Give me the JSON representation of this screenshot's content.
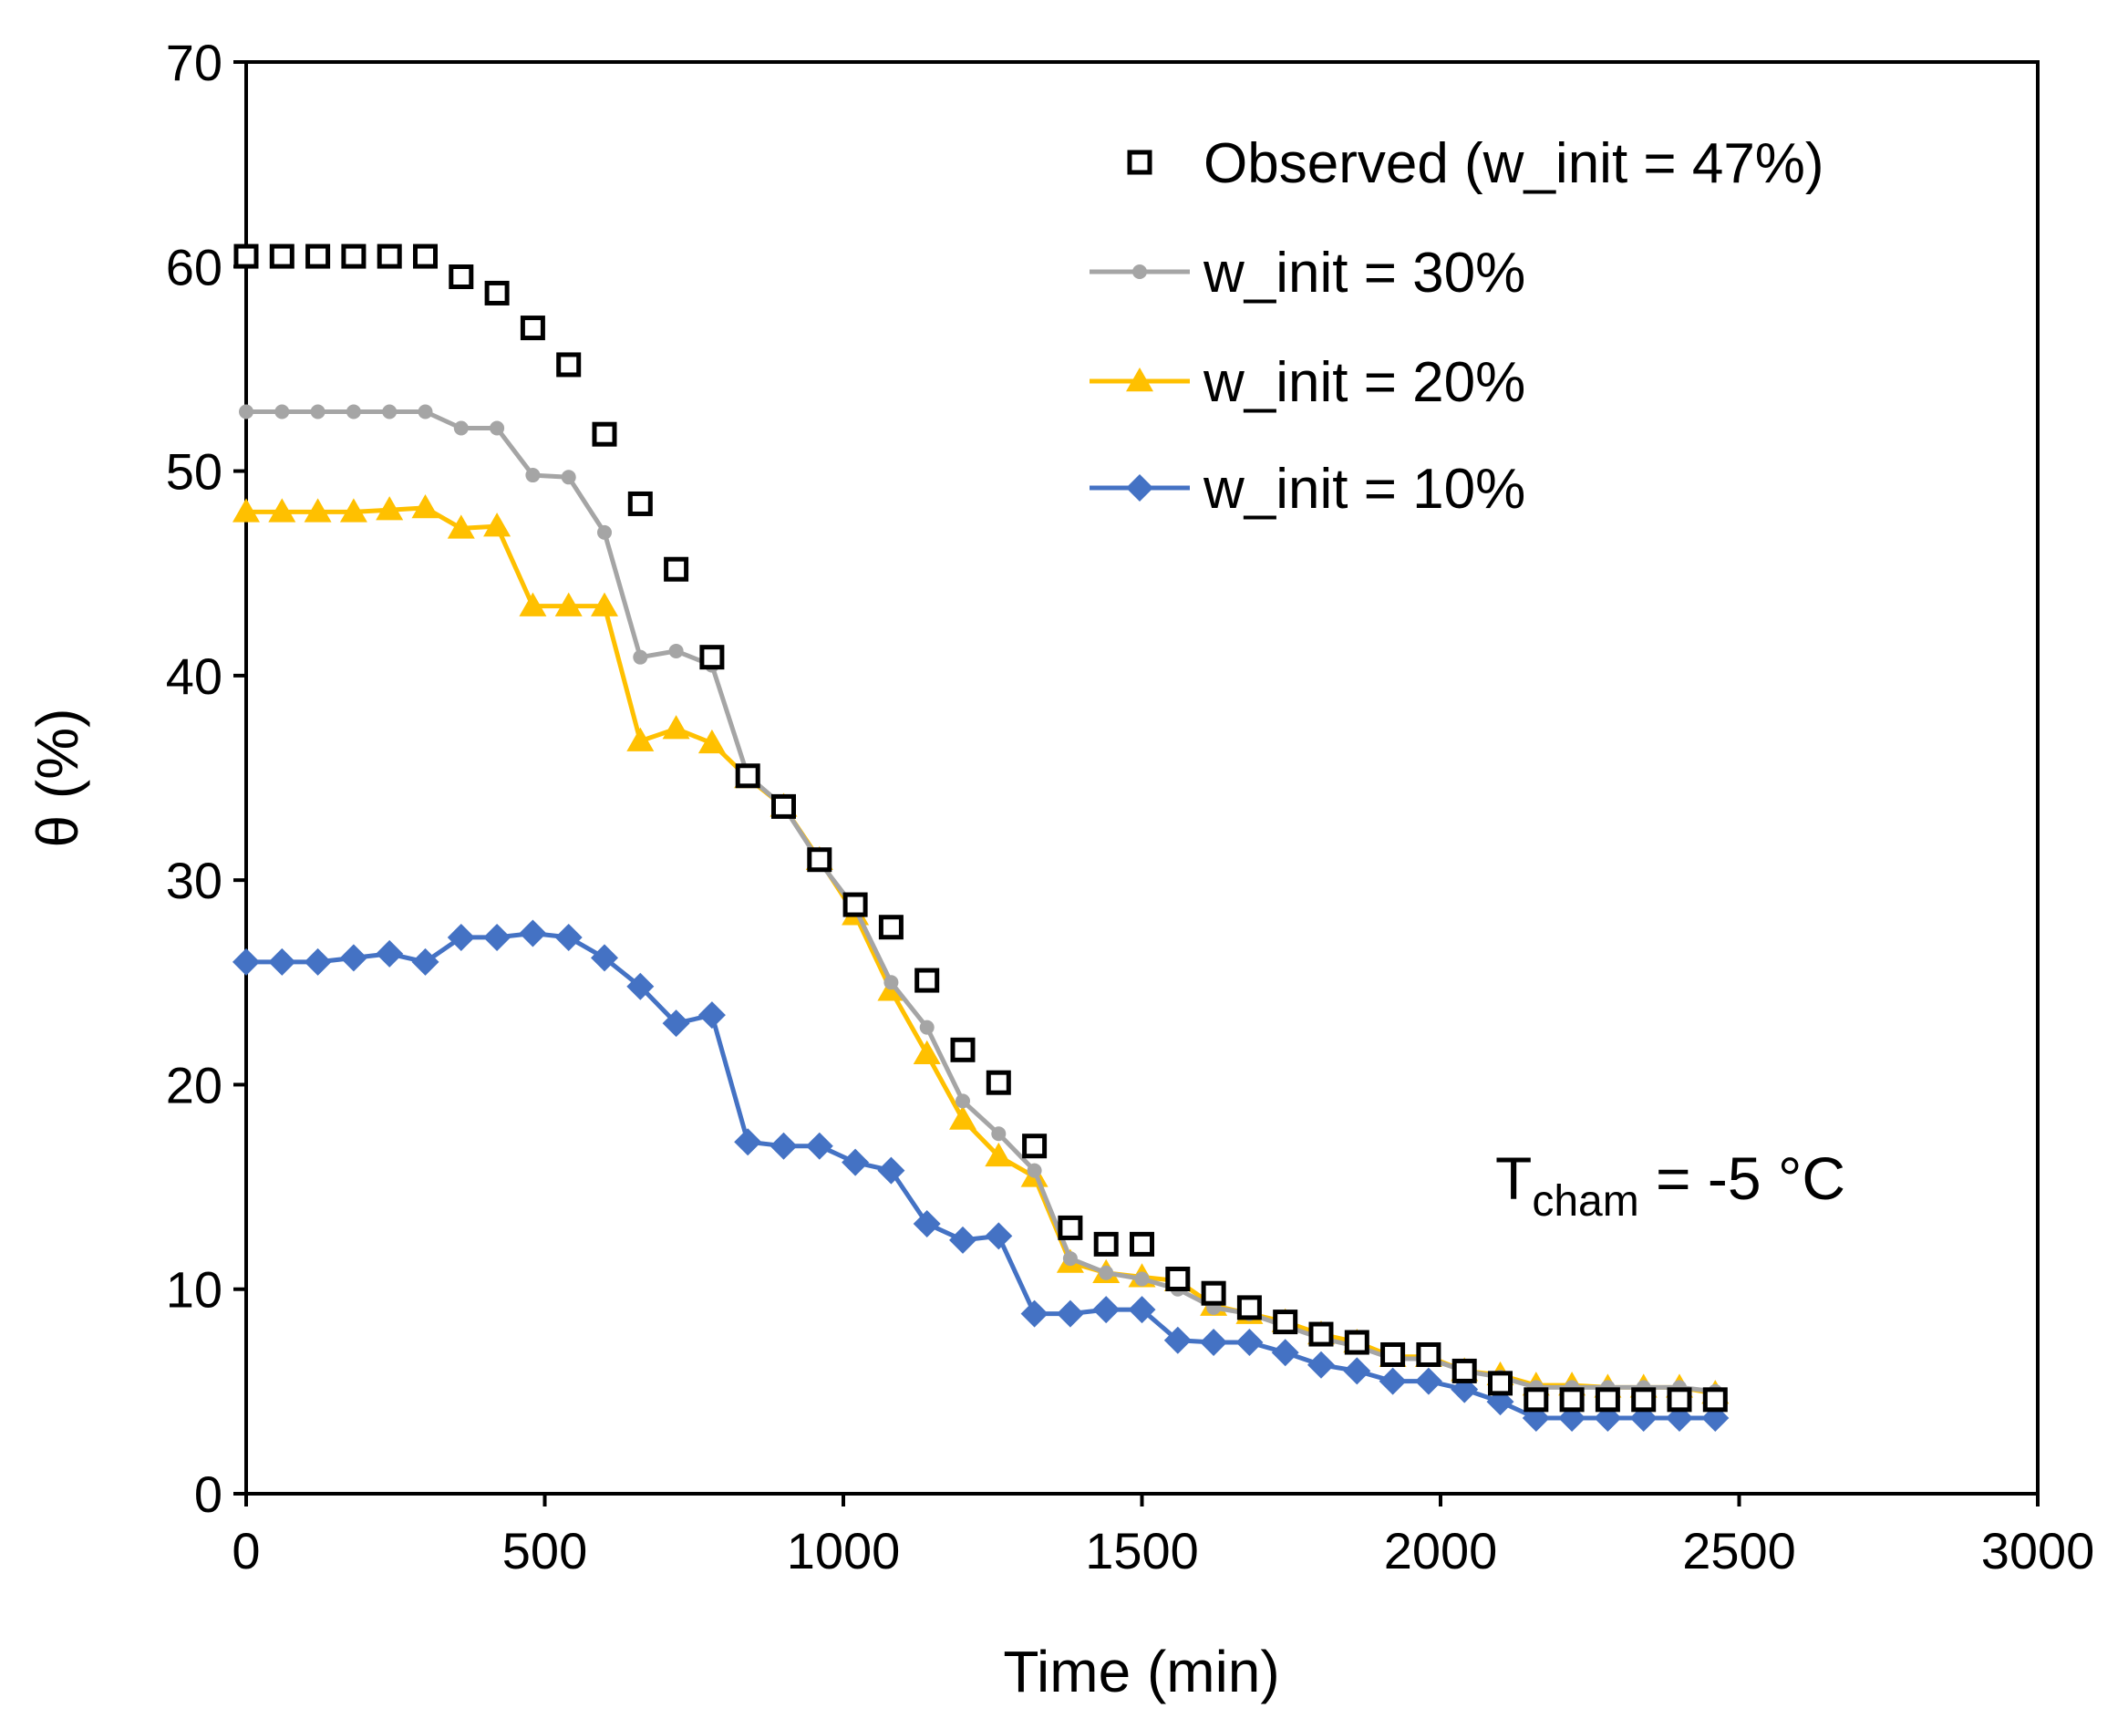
{
  "chart_data": {
    "type": "line",
    "title": "",
    "xlabel": "Time (min)",
    "ylabel": "θ (%)",
    "xlim": [
      0,
      3000
    ],
    "ylim": [
      0,
      70
    ],
    "xticks": [
      0,
      500,
      1000,
      1500,
      2000,
      2500,
      3000
    ],
    "yticks": [
      0,
      10,
      20,
      30,
      40,
      50,
      60,
      70
    ],
    "grid": false,
    "legend_position": "top-right",
    "annotation": {
      "main": "T",
      "sub": "cham",
      "rest": " = -5 °C"
    },
    "series": [
      {
        "name": "Observed (w_init = 47%)",
        "style": "markers",
        "marker": "square-open",
        "color": "#000000",
        "x": [
          0,
          60,
          120,
          180,
          240,
          300,
          360,
          420,
          480,
          540,
          600,
          660,
          720,
          780,
          840,
          900,
          960,
          1020,
          1080,
          1140,
          1200,
          1260,
          1320,
          1380,
          1440,
          1500,
          1560,
          1620,
          1680,
          1740,
          1800,
          1860,
          1920,
          1980,
          2040,
          2100,
          2160,
          2220,
          2280,
          2340,
          2400,
          2460
        ],
        "y": [
          60.5,
          60.5,
          60.5,
          60.5,
          60.5,
          60.5,
          59.5,
          58.7,
          57,
          55.2,
          51.8,
          48.4,
          45.2,
          40.9,
          35.1,
          33.6,
          31,
          28.8,
          27.7,
          25.1,
          21.7,
          20.1,
          17,
          13,
          12.2,
          12.2,
          10.5,
          9.8,
          9.1,
          8.4,
          7.8,
          7.4,
          6.8,
          6.8,
          6,
          5.4,
          4.6,
          4.6,
          4.6,
          4.6,
          4.6,
          4.6
        ]
      },
      {
        "name": "w_init = 30%",
        "style": "line-markers",
        "marker": "circle",
        "color": "#a5a5a5",
        "x": [
          0,
          60,
          120,
          180,
          240,
          300,
          360,
          420,
          480,
          540,
          600,
          660,
          720,
          780,
          840,
          900,
          960,
          1020,
          1080,
          1140,
          1200,
          1260,
          1320,
          1380,
          1440,
          1500,
          1560,
          1620,
          1680,
          1740,
          1800,
          1860,
          1920,
          1980,
          2040,
          2100,
          2160,
          2220,
          2280,
          2340,
          2400,
          2460
        ],
        "y": [
          52.9,
          52.9,
          52.9,
          52.9,
          52.9,
          52.9,
          52.1,
          52.1,
          49.8,
          49.7,
          47,
          40.9,
          41.2,
          40.5,
          35.1,
          33.6,
          30.9,
          28.6,
          25,
          22.8,
          19.2,
          17.6,
          15.8,
          11.5,
          10.8,
          10.5,
          10,
          9.1,
          8.8,
          8.2,
          7.6,
          7.2,
          6.6,
          6.6,
          6,
          5.7,
          5.2,
          5.2,
          5.2,
          5.2,
          5.2,
          5
        ]
      },
      {
        "name": "w_init = 20%",
        "style": "line-markers",
        "marker": "triangle",
        "color": "#ffc000",
        "x": [
          0,
          60,
          120,
          180,
          240,
          300,
          360,
          420,
          480,
          540,
          600,
          660,
          720,
          780,
          840,
          900,
          960,
          1020,
          1080,
          1140,
          1200,
          1260,
          1320,
          1380,
          1440,
          1500,
          1560,
          1620,
          1680,
          1740,
          1800,
          1860,
          1920,
          1980,
          2040,
          2100,
          2160,
          2220,
          2280,
          2340,
          2400,
          2460
        ],
        "y": [
          48,
          48,
          48,
          48,
          48.1,
          48.2,
          47.2,
          47.3,
          43.4,
          43.4,
          43.4,
          36.8,
          37.4,
          36.7,
          35,
          33.6,
          31,
          28.3,
          24.6,
          21.5,
          18.3,
          16.5,
          15.5,
          11.3,
          10.8,
          10.6,
          10.4,
          9.2,
          8.8,
          8.4,
          7.8,
          7.4,
          6.7,
          6.7,
          6,
          5.8,
          5.3,
          5.3,
          5.2,
          5.2,
          5.2,
          4.9
        ]
      },
      {
        "name": "w_init = 10%",
        "style": "line-markers",
        "marker": "diamond",
        "color": "#4472c4",
        "x": [
          0,
          60,
          120,
          180,
          240,
          300,
          360,
          420,
          480,
          540,
          600,
          660,
          720,
          780,
          840,
          900,
          960,
          1020,
          1080,
          1140,
          1200,
          1260,
          1320,
          1380,
          1440,
          1500,
          1560,
          1620,
          1680,
          1740,
          1800,
          1860,
          1920,
          1980,
          2040,
          2100,
          2160,
          2220,
          2280,
          2340,
          2400,
          2460
        ],
        "y": [
          26,
          26,
          26,
          26.2,
          26.4,
          26,
          27.2,
          27.2,
          27.4,
          27.2,
          26.2,
          24.8,
          23,
          23.4,
          17.2,
          17,
          17,
          16.2,
          15.8,
          13.2,
          12.4,
          12.6,
          8.8,
          8.8,
          9,
          9,
          7.5,
          7.4,
          7.4,
          6.9,
          6.3,
          6,
          5.5,
          5.5,
          5.1,
          4.5,
          3.7,
          3.7,
          3.7,
          3.7,
          3.7,
          3.7
        ]
      }
    ]
  }
}
